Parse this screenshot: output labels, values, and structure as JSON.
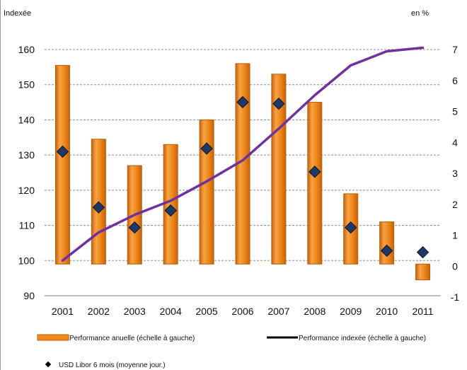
{
  "chart_data": {
    "type": "bar",
    "left_axis_label": "Indexée",
    "right_axis_label": "en %",
    "categories": [
      "2001",
      "2002",
      "2003",
      "2004",
      "2005",
      "2006",
      "2007",
      "2008",
      "2009",
      "2010",
      "2011"
    ],
    "left_axis": {
      "ylim": [
        90,
        160
      ],
      "ticks": [
        90,
        100,
        110,
        120,
        130,
        140,
        150,
        160
      ]
    },
    "right_axis": {
      "ylim": [
        -1,
        7
      ],
      "ticks": [
        -1,
        0,
        1,
        2,
        3,
        4,
        5,
        6,
        7
      ]
    },
    "grid": true,
    "series": [
      {
        "name": "Performance anuelle (échelle à gauche)",
        "type": "bar",
        "axis": "left",
        "base": 99,
        "color": "#f08a1c",
        "values": [
          155.5,
          134.5,
          127,
          133,
          140,
          156,
          153,
          145,
          119,
          111,
          94.5
        ]
      },
      {
        "name": "Performance indexée (échelle à gauche)",
        "type": "line",
        "axis": "left",
        "color": "#7030a0",
        "values": [
          100,
          108,
          113,
          117,
          122.5,
          128.5,
          137.5,
          147,
          155.5,
          159.5,
          160.5
        ]
      },
      {
        "name": "USD Libor 6 mois (moyenne jour.)",
        "type": "scatter",
        "axis": "right",
        "color": "#1f3864",
        "values": [
          3.7,
          1.9,
          1.25,
          1.8,
          3.8,
          5.3,
          5.25,
          3.05,
          1.25,
          0.5,
          0.45
        ]
      }
    ]
  }
}
